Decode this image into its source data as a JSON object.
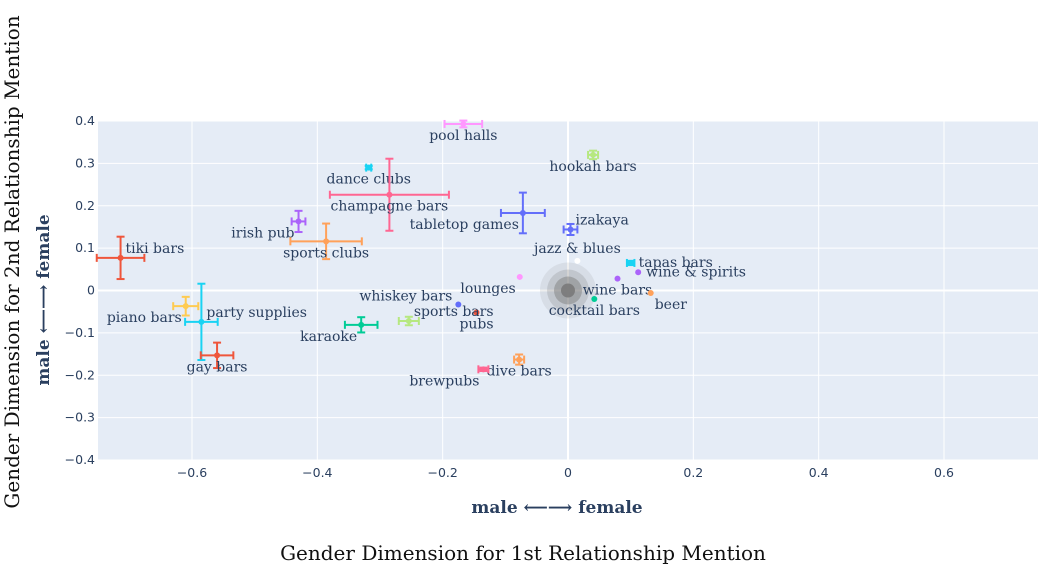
{
  "chart_data": {
    "type": "scatter",
    "title": "",
    "xlabel": "Gender Dimension for 1st Relationship Mention",
    "ylabel": "Gender Dimension for 2nd Relationship Mention",
    "x_direction_label": "male ⟵⟶ female",
    "y_direction_label": "male ⟵⟶ female",
    "xlim": [
      -0.75,
      0.75
    ],
    "ylim": [
      -0.4,
      0.4
    ],
    "x_ticks": [
      -0.6,
      -0.4,
      -0.2,
      0,
      0.2,
      0.4,
      0.6
    ],
    "x_tick_labels": [
      "−0.6",
      "−0.4",
      "−0.2",
      "0",
      "0.2",
      "0.4",
      "0.6"
    ],
    "y_ticks": [
      0.4,
      0.3,
      0.2,
      0.1,
      0,
      -0.1,
      -0.2,
      -0.3,
      -0.4
    ],
    "y_tick_labels": [
      "0.4",
      "0.3",
      "0.2",
      "0.1",
      "0",
      "−0.1",
      "−0.2",
      "−0.3",
      "−0.4"
    ],
    "grid": true,
    "plot_background": "#e5ecf6",
    "origin_marker_color": "#777777",
    "points": [
      {
        "label": "pool halls",
        "x": -0.167,
        "y": 0.393,
        "ex": 0.03,
        "ey": 0.008,
        "color": "#ff97ff",
        "label_pos": "below"
      },
      {
        "label": "hookah bars",
        "x": 0.04,
        "y": 0.32,
        "ex": 0.008,
        "ey": 0.01,
        "color": "#b6e880",
        "label_pos": "below"
      },
      {
        "label": "dance clubs",
        "x": -0.318,
        "y": 0.29,
        "ex": 0.004,
        "ey": 0.004,
        "color": "#19d3f3",
        "label_pos": "below"
      },
      {
        "label": "champagne bars",
        "x": -0.285,
        "y": 0.226,
        "ex": 0.095,
        "ey": 0.085,
        "color": "#ff6692",
        "label_pos": "below"
      },
      {
        "label": "tabletop games",
        "x": -0.072,
        "y": 0.183,
        "ex": 0.035,
        "ey": 0.048,
        "color": "#636efa",
        "label_pos": "below-left"
      },
      {
        "label": "izakaya",
        "x": 0.004,
        "y": 0.144,
        "ex": 0.011,
        "ey": 0.013,
        "color": "#636efa",
        "label_pos": "above-right"
      },
      {
        "label": "irish pub",
        "x": -0.43,
        "y": 0.163,
        "ex": 0.011,
        "ey": 0.025,
        "color": "#ab63fa",
        "label_pos": "below-left"
      },
      {
        "label": "sports clubs",
        "x": -0.386,
        "y": 0.116,
        "ex": 0.057,
        "ey": 0.042,
        "color": "#ffa15a",
        "label_pos": "below"
      },
      {
        "label": "tiki bars",
        "x": -0.714,
        "y": 0.077,
        "ex": 0.038,
        "ey": 0.05,
        "color": "#ef553b",
        "label_pos": "above-right"
      },
      {
        "label": "jazz & blues",
        "x": 0.015,
        "y": 0.07,
        "ex": 0,
        "ey": 0,
        "color": "#ffffff",
        "label_pos": "above"
      },
      {
        "label": "tapas bars",
        "x": 0.1,
        "y": 0.065,
        "ex": 0.006,
        "ey": 0.005,
        "color": "#19d3f3",
        "label_pos": "right"
      },
      {
        "label": "wine & spirits",
        "x": 0.112,
        "y": 0.043,
        "ex": 0,
        "ey": 0,
        "color": "#ab63fa",
        "label_pos": "right"
      },
      {
        "label": "lounges",
        "x": -0.077,
        "y": 0.032,
        "ex": 0,
        "ey": 0,
        "color": "#ff97ff",
        "label_pos": "below-left"
      },
      {
        "label": "wine bars",
        "x": 0.079,
        "y": 0.028,
        "ex": 0,
        "ey": 0,
        "color": "#ab63fa",
        "label_pos": "below"
      },
      {
        "label": "beer",
        "x": 0.132,
        "y": -0.006,
        "ex": 0,
        "ey": 0,
        "color": "#ffa15a",
        "label_pos": "below-right"
      },
      {
        "label": "cocktail bars",
        "x": 0.042,
        "y": -0.02,
        "ex": 0,
        "ey": 0,
        "color": "#00cc96",
        "label_pos": "below"
      },
      {
        "label": "whiskey bars",
        "x": -0.175,
        "y": -0.033,
        "ex": 0,
        "ey": 0,
        "color": "#636efa",
        "label_pos": "left"
      },
      {
        "label": "pubs",
        "x": -0.146,
        "y": -0.052,
        "ex": 0,
        "ey": 0,
        "color": "#ef553b",
        "label_pos": "below"
      },
      {
        "label": "sports bars",
        "x": -0.254,
        "y": -0.072,
        "ex": 0.016,
        "ey": 0.01,
        "color": "#b6e880",
        "label_pos": "above-right"
      },
      {
        "label": "karaoke",
        "x": -0.33,
        "y": -0.081,
        "ex": 0.026,
        "ey": 0.018,
        "color": "#00cc96",
        "label_pos": "below-left"
      },
      {
        "label": "piano bars",
        "x": -0.61,
        "y": -0.037,
        "ex": 0.02,
        "ey": 0.022,
        "color": "#fecb52",
        "label_pos": "below-left"
      },
      {
        "label": "party supplies",
        "x": -0.585,
        "y": -0.074,
        "ex": 0.026,
        "ey": 0.09,
        "color": "#19d3f3",
        "label_pos": "above-right"
      },
      {
        "label": "gay bars",
        "x": -0.56,
        "y": -0.153,
        "ex": 0.026,
        "ey": 0.03,
        "color": "#ef553b",
        "label_pos": "below"
      },
      {
        "label": "dive bars",
        "x": -0.078,
        "y": -0.163,
        "ex": 0.008,
        "ey": 0.012,
        "color": "#ffa15a",
        "label_pos": "below"
      },
      {
        "label": "brewpubs",
        "x": -0.135,
        "y": -0.186,
        "ex": 0.008,
        "ey": 0.004,
        "color": "#ff6692",
        "label_pos": "below-left"
      }
    ]
  }
}
